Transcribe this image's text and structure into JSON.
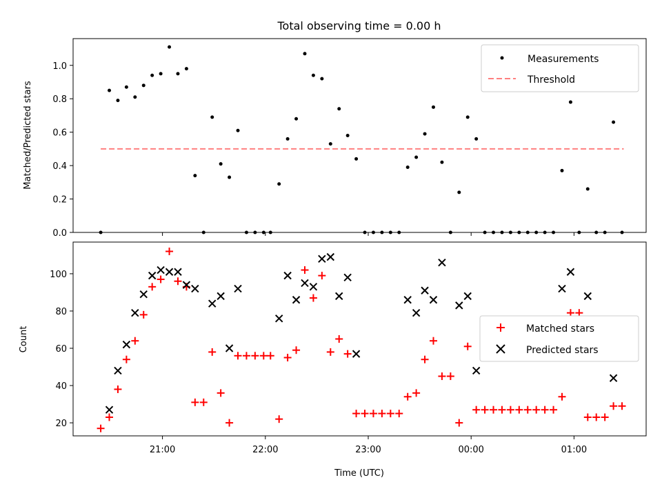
{
  "chart_data": [
    {
      "type": "scatter",
      "title": "Total observing time = 0.00 h",
      "ylabel": "Matched/Predicted stars",
      "xlabel": "",
      "ylim": [
        0,
        1.16
      ],
      "yticks": [
        0.0,
        0.2,
        0.4,
        0.6,
        0.8,
        1.0
      ],
      "ytick_labels": [
        "0.0",
        "0.2",
        "0.4",
        "0.6",
        "0.8",
        "1.0"
      ],
      "legend": {
        "placement": "top-right",
        "entries": [
          "Measurements",
          "Threshold"
        ]
      },
      "threshold": {
        "name": "Threshold",
        "value": 0.5,
        "x_start": "20:24",
        "x_end": "01:29",
        "color": "#ff7f7f"
      },
      "series": [
        {
          "name": "Measurements",
          "marker": "dot",
          "color": "#000000",
          "points": [
            [
              "20:24",
              0.0
            ],
            [
              "20:29",
              0.85
            ],
            [
              "20:34",
              0.79
            ],
            [
              "20:39",
              0.87
            ],
            [
              "20:44",
              0.81
            ],
            [
              "20:49",
              0.88
            ],
            [
              "20:54",
              0.94
            ],
            [
              "20:59",
              0.95
            ],
            [
              "21:04",
              1.11
            ],
            [
              "21:09",
              0.95
            ],
            [
              "21:14",
              0.98
            ],
            [
              "21:19",
              0.34
            ],
            [
              "21:24",
              0.0
            ],
            [
              "21:29",
              0.69
            ],
            [
              "21:34",
              0.41
            ],
            [
              "21:39",
              0.33
            ],
            [
              "21:44",
              0.61
            ],
            [
              "21:49",
              0.0
            ],
            [
              "21:54",
              0.0
            ],
            [
              "21:59",
              0.0
            ],
            [
              "22:03",
              0.0
            ],
            [
              "22:08",
              0.29
            ],
            [
              "22:13",
              0.56
            ],
            [
              "22:18",
              0.68
            ],
            [
              "22:23",
              1.07
            ],
            [
              "22:28",
              0.94
            ],
            [
              "22:33",
              0.92
            ],
            [
              "22:38",
              0.53
            ],
            [
              "22:43",
              0.74
            ],
            [
              "22:48",
              0.58
            ],
            [
              "22:53",
              0.44
            ],
            [
              "22:58",
              0.0
            ],
            [
              "23:03",
              0.0
            ],
            [
              "23:08",
              0.0
            ],
            [
              "23:13",
              0.0
            ],
            [
              "23:18",
              0.0
            ],
            [
              "23:23",
              0.39
            ],
            [
              "23:28",
              0.45
            ],
            [
              "23:33",
              0.59
            ],
            [
              "23:38",
              0.75
            ],
            [
              "23:43",
              0.42
            ],
            [
              "23:48",
              0.0
            ],
            [
              "23:53",
              0.24
            ],
            [
              "23:58",
              0.69
            ],
            [
              "00:03",
              0.56
            ],
            [
              "00:08",
              0.0
            ],
            [
              "00:13",
              0.0
            ],
            [
              "00:18",
              0.0
            ],
            [
              "00:23",
              0.0
            ],
            [
              "00:28",
              0.0
            ],
            [
              "00:33",
              0.0
            ],
            [
              "00:38",
              0.0
            ],
            [
              "00:43",
              0.0
            ],
            [
              "00:48",
              0.0
            ],
            [
              "00:53",
              0.37
            ],
            [
              "00:58",
              0.78
            ],
            [
              "01:03",
              0.0
            ],
            [
              "01:08",
              0.26
            ],
            [
              "01:13",
              0.0
            ],
            [
              "01:18",
              0.0
            ],
            [
              "01:23",
              0.66
            ],
            [
              "01:28",
              0.0
            ]
          ]
        }
      ]
    },
    {
      "type": "scatter",
      "title": "",
      "xlabel": "Time (UTC)",
      "ylabel": "Count",
      "ylim": [
        13,
        117
      ],
      "yticks": [
        20,
        40,
        60,
        80,
        100
      ],
      "ytick_labels": [
        "20",
        "40",
        "60",
        "80",
        "100"
      ],
      "xticks": [
        "21:00",
        "22:00",
        "23:00",
        "00:00",
        "01:00"
      ],
      "legend": {
        "placement": "center-right",
        "entries": [
          "Matched stars",
          "Predicted stars"
        ]
      },
      "series": [
        {
          "name": "Matched stars",
          "marker": "plus",
          "color": "#ff0000",
          "points": [
            [
              "20:24",
              17
            ],
            [
              "20:29",
              23
            ],
            [
              "20:34",
              38
            ],
            [
              "20:39",
              54
            ],
            [
              "20:44",
              64
            ],
            [
              "20:49",
              78
            ],
            [
              "20:54",
              93
            ],
            [
              "20:59",
              97
            ],
            [
              "21:04",
              112
            ],
            [
              "21:09",
              96
            ],
            [
              "21:14",
              93
            ],
            [
              "21:19",
              31
            ],
            [
              "21:24",
              31
            ],
            [
              "21:29",
              58
            ],
            [
              "21:34",
              36
            ],
            [
              "21:39",
              20
            ],
            [
              "21:44",
              56
            ],
            [
              "21:49",
              56
            ],
            [
              "21:54",
              56
            ],
            [
              "21:59",
              56
            ],
            [
              "22:03",
              56
            ],
            [
              "22:08",
              22
            ],
            [
              "22:13",
              55
            ],
            [
              "22:18",
              59
            ],
            [
              "22:23",
              102
            ],
            [
              "22:28",
              87
            ],
            [
              "22:33",
              99
            ],
            [
              "22:38",
              58
            ],
            [
              "22:43",
              65
            ],
            [
              "22:48",
              57
            ],
            [
              "22:53",
              25
            ],
            [
              "22:58",
              25
            ],
            [
              "23:03",
              25
            ],
            [
              "23:08",
              25
            ],
            [
              "23:13",
              25
            ],
            [
              "23:18",
              25
            ],
            [
              "23:23",
              34
            ],
            [
              "23:28",
              36
            ],
            [
              "23:33",
              54
            ],
            [
              "23:38",
              64
            ],
            [
              "23:43",
              45
            ],
            [
              "23:48",
              45
            ],
            [
              "23:53",
              20
            ],
            [
              "23:58",
              61
            ],
            [
              "00:03",
              27
            ],
            [
              "00:08",
              27
            ],
            [
              "00:13",
              27
            ],
            [
              "00:18",
              27
            ],
            [
              "00:23",
              27
            ],
            [
              "00:28",
              27
            ],
            [
              "00:33",
              27
            ],
            [
              "00:38",
              27
            ],
            [
              "00:43",
              27
            ],
            [
              "00:48",
              27
            ],
            [
              "00:53",
              34
            ],
            [
              "00:58",
              79
            ],
            [
              "01:03",
              79
            ],
            [
              "01:08",
              23
            ],
            [
              "01:13",
              23
            ],
            [
              "01:18",
              23
            ],
            [
              "01:23",
              29
            ],
            [
              "01:28",
              29
            ]
          ]
        },
        {
          "name": "Predicted stars",
          "marker": "x",
          "color": "#000000",
          "points": [
            [
              "20:29",
              27
            ],
            [
              "20:34",
              48
            ],
            [
              "20:39",
              62
            ],
            [
              "20:44",
              79
            ],
            [
              "20:49",
              89
            ],
            [
              "20:54",
              99
            ],
            [
              "20:59",
              102
            ],
            [
              "21:04",
              101
            ],
            [
              "21:09",
              101
            ],
            [
              "21:14",
              94
            ],
            [
              "21:19",
              92
            ],
            [
              "21:29",
              84
            ],
            [
              "21:34",
              88
            ],
            [
              "21:39",
              60
            ],
            [
              "21:44",
              92
            ],
            [
              "22:08",
              76
            ],
            [
              "22:13",
              99
            ],
            [
              "22:18",
              86
            ],
            [
              "22:23",
              95
            ],
            [
              "22:28",
              93
            ],
            [
              "22:33",
              108
            ],
            [
              "22:38",
              109
            ],
            [
              "22:43",
              88
            ],
            [
              "22:48",
              98
            ],
            [
              "22:53",
              57
            ],
            [
              "23:23",
              86
            ],
            [
              "23:28",
              79
            ],
            [
              "23:33",
              91
            ],
            [
              "23:38",
              86
            ],
            [
              "23:43",
              106
            ],
            [
              "23:53",
              83
            ],
            [
              "23:58",
              88
            ],
            [
              "00:03",
              48
            ],
            [
              "00:53",
              92
            ],
            [
              "00:58",
              101
            ],
            [
              "01:08",
              88
            ],
            [
              "01:23",
              44
            ]
          ]
        }
      ]
    }
  ]
}
